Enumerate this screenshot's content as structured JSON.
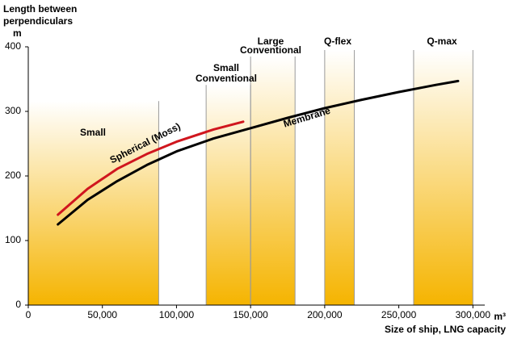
{
  "chart_data": {
    "type": "line",
    "y_label": [
      "Length between",
      "perpendiculars"
    ],
    "y_unit": "m",
    "x_label": "Size of ship, LNG capacity",
    "x_unit": "m³",
    "xlim": [
      0,
      308000
    ],
    "ylim": [
      0,
      400
    ],
    "xticks": [
      0,
      {
        "value": 50000,
        "label": "50,000"
      },
      {
        "value": 100000,
        "label": "100,000"
      },
      {
        "value": 150000,
        "label": "150,000"
      },
      {
        "value": 200000,
        "label": "200,000"
      },
      {
        "value": 250000,
        "label": "250,000"
      },
      {
        "value": 300000,
        "label": "300,000"
      }
    ],
    "yticks": [
      0,
      100,
      200,
      300,
      400
    ],
    "band_color": "#f5b400",
    "bands": [
      {
        "name": [
          "Small"
        ],
        "x": [
          0,
          88000
        ],
        "top": 316
      },
      {
        "name": [
          "Small",
          "Conventional"
        ],
        "x": [
          120000,
          150000
        ],
        "top": 341
      },
      {
        "name": [
          "Large",
          "Conventional"
        ],
        "x": [
          150000,
          180000
        ],
        "top": 385
      },
      {
        "name": [
          "Q-flex"
        ],
        "x": [
          200000,
          220000
        ],
        "top": 395
      },
      {
        "name": [
          "Q-max"
        ],
        "x": [
          260000,
          300000
        ],
        "top": 395
      }
    ],
    "series": [
      {
        "name": "Membrane",
        "color": "#000000",
        "x": [
          20000,
          40000,
          60000,
          80000,
          100000,
          125000,
          150000,
          175000,
          200000,
          225000,
          250000,
          275000,
          290000
        ],
        "values": [
          125,
          163,
          192,
          217,
          238,
          258,
          274,
          290,
          305,
          318,
          330,
          341,
          347
        ]
      },
      {
        "name": "Spherical (Moss)",
        "color": "#d0161e",
        "x": [
          20000,
          40000,
          60000,
          80000,
          100000,
          125000,
          145000
        ],
        "values": [
          140,
          180,
          211,
          234,
          253,
          272,
          284
        ]
      }
    ]
  }
}
